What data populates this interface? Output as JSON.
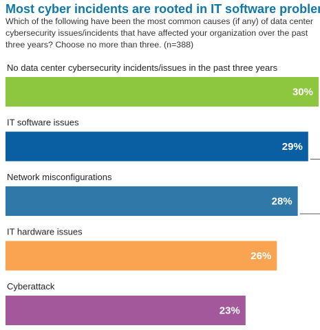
{
  "chart_data": {
    "type": "bar",
    "orientation": "horizontal",
    "title": "Most cyber incidents are rooted in IT software problems",
    "subtitle": "Which of the following have been the most common causes (if any) of data center cybersecurity issues/incidents that have affected your organization over the past three years? Choose no more than three. (n=388)",
    "categories": [
      "No data center cybersecurity incidents/issues in the past three years",
      "IT software issues",
      "Network misconfigurations",
      "IT hardware issues",
      "Cyberattack"
    ],
    "values": [
      30,
      29,
      28,
      26,
      23
    ],
    "value_labels": [
      "30%",
      "29%",
      "28%",
      "26%",
      "23%"
    ],
    "bar_colors": [
      "#8dc63f",
      "#0a5fa3",
      "#2f78a8",
      "#f8a451",
      "#a2589a"
    ],
    "xlim": [
      0,
      30
    ],
    "grid": false,
    "legend": "none"
  }
}
